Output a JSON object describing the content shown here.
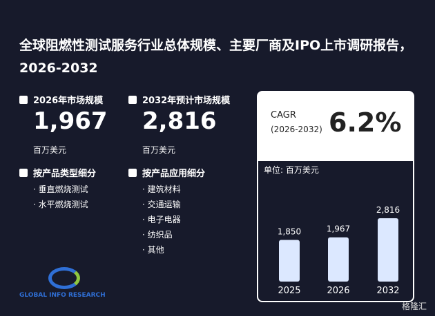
{
  "title": "全球阻燃性测试服务行业总体规模、主要厂商及IPO上市调研报告，2026-2032",
  "stats": [
    {
      "label": "2026年市场规模",
      "value": "1,967",
      "unit": "百万美元"
    },
    {
      "label": "2032年预计市场规模",
      "value": "2,816",
      "unit": "百万美元"
    }
  ],
  "segments": [
    {
      "title": "按产品类型细分",
      "items": [
        "垂直燃烧测试",
        "水平燃烧测试"
      ]
    },
    {
      "title": "按产品应用细分",
      "items": [
        "建筑材料",
        "交通运输",
        "电子电器",
        "纺织品",
        "其他"
      ]
    }
  ],
  "cagr": {
    "label": "CAGR",
    "period": "(2026-2032)",
    "value": "6.2%"
  },
  "logo": "GLOBAL INFO RESEARCH",
  "watermark": "格隆汇",
  "chart_data": {
    "type": "bar",
    "unit_label": "单位: 百万美元",
    "categories": [
      "2025",
      "2026",
      "2032"
    ],
    "values": [
      1850,
      1967,
      2816
    ],
    "value_labels": [
      "1,850",
      "1,967",
      "2,816"
    ],
    "color": "#dce8ff"
  }
}
